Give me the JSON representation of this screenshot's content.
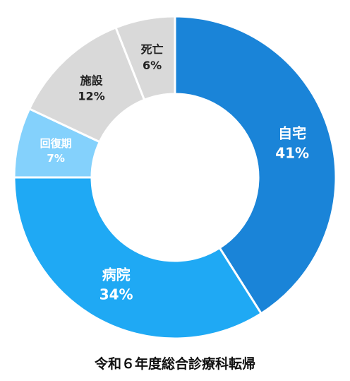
{
  "chart_data": {
    "type": "pie",
    "variant": "donut",
    "title": "令和６年度総合診療科転帰",
    "slices": [
      {
        "label": "自宅",
        "value_label": "41%",
        "value": 41,
        "color": "#1a84d8",
        "text_color": "#ffffff"
      },
      {
        "label": "病院",
        "value_label": "34%",
        "value": 34,
        "color": "#1fa9f4",
        "text_color": "#ffffff"
      },
      {
        "label": "回復期",
        "value_label": "7%",
        "value": 7,
        "color": "#84d1fc",
        "text_color": "#ffffff"
      },
      {
        "label": "施設",
        "value_label": "12%",
        "value": 12,
        "color": "#d9d9d9",
        "text_color": "#222222"
      },
      {
        "label": "死亡",
        "value_label": "6%",
        "value": 6,
        "color": "#d9d9d9",
        "text_color": "#222222"
      }
    ],
    "start_angle": "12 o'clock",
    "direction": "clockwise",
    "legend": "none"
  }
}
